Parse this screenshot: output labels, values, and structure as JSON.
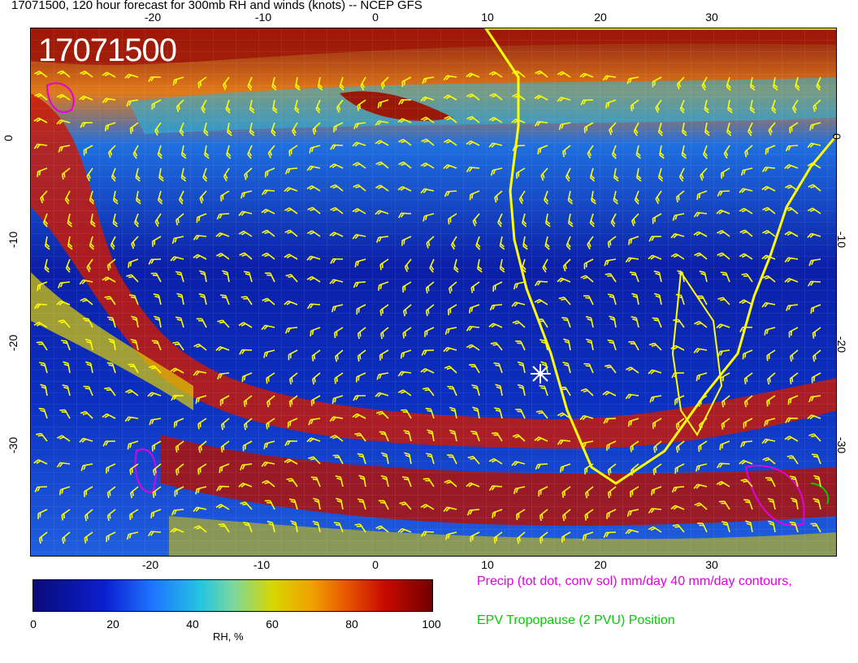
{
  "title": "17071500, 120 hour forecast for 300mb RH and winds (knots) -- NCEP GFS",
  "stamp": "17071500",
  "lon_ticks": [
    "-20",
    "-10",
    "0",
    "10",
    "20",
    "30"
  ],
  "lat_ticks": [
    "0",
    "-10",
    "-20",
    "-30"
  ],
  "colorbar": {
    "ticks": [
      "0",
      "20",
      "40",
      "60",
      "80",
      "100"
    ],
    "unit": "RH, %",
    "colors": [
      "#0a0a78",
      "#0b1fd0",
      "#1f75ff",
      "#23c6e0",
      "#7bd7a0",
      "#d7d600",
      "#f0a000",
      "#e85a00",
      "#c80a00",
      "#700000"
    ]
  },
  "legend": {
    "precip": "Precip (tot dot, conv sol) mm/day 40 mm/day contours,",
    "precip_color": "#e000e0",
    "epv": "EPV Tropopause (2 PVU) Position",
    "epv_color": "#00cc00"
  },
  "overlay_colors": {
    "coastline": "#ffff00",
    "barbs": "#ffff00",
    "marker": "#ffffff"
  }
}
